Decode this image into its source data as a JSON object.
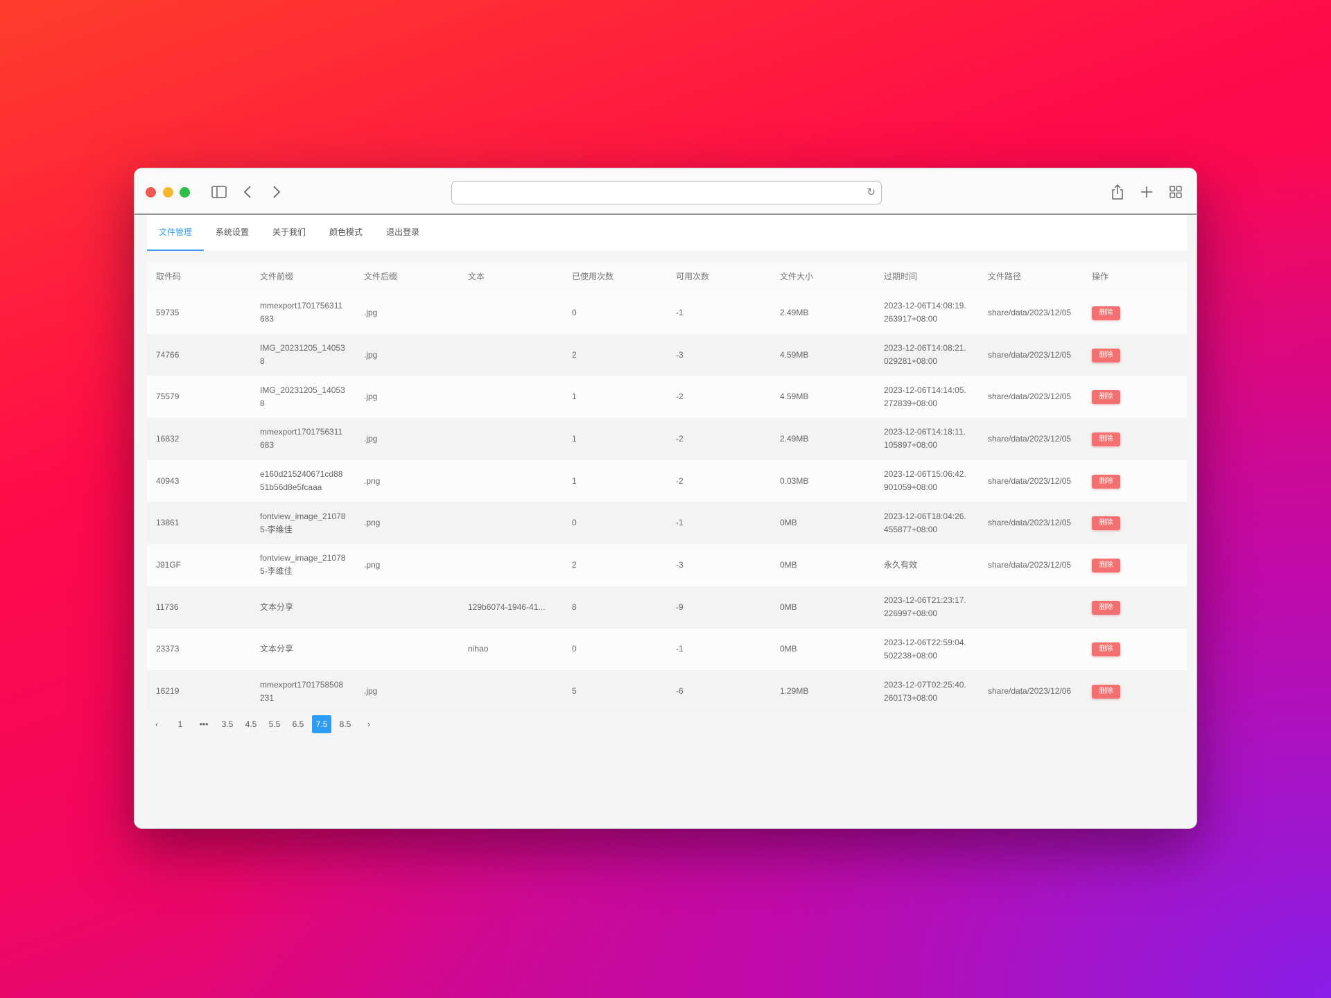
{
  "browser": {
    "url": "",
    "colors": {
      "close": "#ee5a52",
      "minimize": "#f6b72a",
      "maximize": "#2dbe43"
    }
  },
  "tabs": [
    {
      "label": "文件管理",
      "active": true
    },
    {
      "label": "系统设置"
    },
    {
      "label": "关于我们"
    },
    {
      "label": "颜色模式"
    },
    {
      "label": "退出登录"
    }
  ],
  "table": {
    "headers": [
      "取件码",
      "文件前缀",
      "文件后缀",
      "文本",
      "已使用次数",
      "可用次数",
      "文件大小",
      "过期时间",
      "文件路径",
      "操作"
    ],
    "rows": [
      [
        "59735",
        "mmexport1701756311683",
        ".jpg",
        "",
        "0",
        "-1",
        "2.49MB",
        "2023-12-06T14:08:19.263917+08:00",
        "share/data/2023/12/05"
      ],
      [
        "74766",
        "IMG_20231205_140538",
        ".jpg",
        "",
        "2",
        "-3",
        "4.59MB",
        "2023-12-06T14:08:21.029281+08:00",
        "share/data/2023/12/05"
      ],
      [
        "75579",
        "IMG_20231205_140538",
        ".jpg",
        "",
        "1",
        "-2",
        "4.59MB",
        "2023-12-06T14:14:05.272839+08:00",
        "share/data/2023/12/05"
      ],
      [
        "16832",
        "mmexport1701756311683",
        ".jpg",
        "",
        "1",
        "-2",
        "2.49MB",
        "2023-12-06T14:18:11.105897+08:00",
        "share/data/2023/12/05"
      ],
      [
        "40943",
        "e160d215240671cd8851b56d8e5fcaaa",
        ".png",
        "",
        "1",
        "-2",
        "0.03MB",
        "2023-12-06T15:06:42.901059+08:00",
        "share/data/2023/12/05"
      ],
      [
        "13861",
        "fontview_image_210785-李维佳",
        ".png",
        "",
        "0",
        "-1",
        "0MB",
        "2023-12-06T18:04:26.455877+08:00",
        "share/data/2023/12/05"
      ],
      [
        "J91GF",
        "fontview_image_210785-李维佳",
        ".png",
        "",
        "2",
        "-3",
        "0MB",
        "永久有效",
        "share/data/2023/12/05"
      ],
      [
        "11736",
        "文本分享",
        "",
        "129b6074-1946-41...",
        "8",
        "-9",
        "0MB",
        "2023-12-06T21:23:17.226997+08:00",
        ""
      ],
      [
        "23373",
        "文本分享",
        "",
        "nihao",
        "0",
        "-1",
        "0MB",
        "2023-12-06T22:59:04.502238+08:00",
        ""
      ],
      [
        "16219",
        "mmexport1701758508231",
        ".jpg",
        "",
        "5",
        "-6",
        "1.29MB",
        "2023-12-07T02:25:40.260173+08:00",
        "share/data/2023/12/06"
      ]
    ],
    "delete_label": "删除"
  },
  "pagination": {
    "prev": "‹",
    "next": "›",
    "pages": [
      "1",
      "•••",
      "3.5",
      "4.5",
      "5.5",
      "6.5",
      "7.5",
      "8.5"
    ],
    "current": "7.5"
  },
  "accent": "#3a9cf3",
  "danger": "#f46f6f"
}
